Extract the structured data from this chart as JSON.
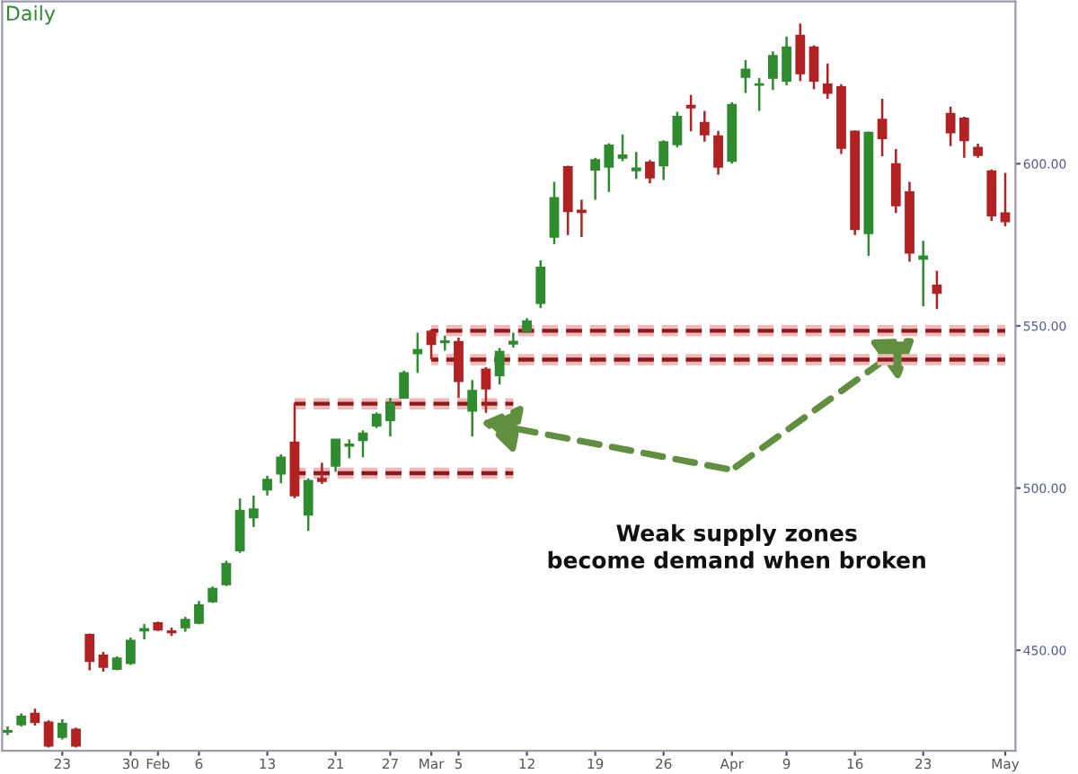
{
  "chart_data": {
    "type": "candlestick",
    "title": "Daily",
    "categories": [
      null,
      null,
      null,
      null,
      "23",
      null,
      null,
      null,
      null,
      "30",
      null,
      "Feb",
      null,
      null,
      "6",
      null,
      null,
      null,
      null,
      "13",
      null,
      null,
      null,
      null,
      "21",
      null,
      null,
      null,
      "27",
      null,
      null,
      "Mar",
      null,
      "5",
      null,
      null,
      null,
      null,
      "12",
      null,
      null,
      null,
      null,
      "19",
      null,
      null,
      null,
      null,
      "26",
      null,
      null,
      null,
      null,
      "Apr",
      null,
      null,
      null,
      "9",
      null,
      null,
      null,
      null,
      "16",
      null,
      null,
      null,
      null,
      "23",
      null,
      null,
      null,
      null,
      null,
      "May"
    ],
    "ohlc": [
      [
        424.8,
        426.5,
        423.8,
        425.2
      ],
      [
        427.1,
        430.5,
        426.5,
        429.6
      ],
      [
        430.5,
        432.0,
        426.8,
        427.8
      ],
      [
        427.8,
        428.4,
        420.0,
        420.5
      ],
      [
        423.2,
        428.7,
        422.5,
        427.4
      ],
      [
        425.6,
        426.2,
        420.0,
        420.5
      ],
      [
        454.8,
        455.2,
        443.8,
        446.6
      ],
      [
        448.4,
        449.5,
        443.4,
        444.8
      ],
      [
        444.2,
        448.1,
        443.8,
        447.5
      ],
      [
        446.0,
        453.9,
        445.5,
        453.0
      ],
      [
        456.0,
        458.1,
        453.4,
        456.6
      ],
      [
        458.4,
        458.8,
        455.9,
        456.3
      ],
      [
        455.9,
        457.0,
        454.4,
        455.5
      ],
      [
        457.0,
        460.3,
        455.7,
        459.4
      ],
      [
        458.4,
        465.2,
        458.0,
        463.9
      ],
      [
        465.0,
        469.6,
        464.6,
        469.0
      ],
      [
        470.3,
        477.6,
        469.8,
        476.7
      ],
      [
        480.7,
        496.8,
        480.0,
        493.1
      ],
      [
        490.9,
        497.7,
        488.0,
        493.5
      ],
      [
        499.5,
        503.8,
        497.7,
        502.6
      ],
      [
        504.4,
        510.4,
        501.5,
        509.5
      ],
      [
        514.1,
        526.3,
        496.9,
        497.7
      ],
      [
        491.7,
        503.0,
        486.8,
        502.3
      ],
      [
        502.9,
        507.8,
        501.3,
        502.1
      ],
      [
        506.8,
        515.0,
        505.0,
        515.0
      ],
      [
        513.0,
        515.0,
        509.2,
        513.5
      ],
      [
        514.7,
        517.8,
        509.5,
        516.9
      ],
      [
        519.2,
        523.3,
        518.5,
        522.7
      ],
      [
        520.9,
        527.8,
        515.9,
        526.0
      ],
      [
        527.8,
        536.2,
        527.5,
        535.5
      ],
      [
        541.5,
        547.9,
        535.5,
        542.6
      ],
      [
        548.3,
        548.9,
        539.6,
        544.3
      ],
      [
        544.9,
        547.0,
        542.4,
        545.3
      ],
      [
        545.1,
        546.4,
        527.8,
        532.9
      ],
      [
        523.8,
        533.3,
        515.9,
        530.0
      ],
      [
        536.6,
        537.3,
        523.2,
        530.6
      ],
      [
        534.7,
        543.2,
        531.9,
        542.1
      ],
      [
        544.5,
        547.9,
        543.3,
        545.2
      ],
      [
        548.4,
        552.4,
        547.9,
        551.5
      ],
      [
        557.0,
        570.2,
        555.5,
        568.0
      ],
      [
        577.4,
        594.4,
        575.2,
        589.5
      ],
      [
        599.0,
        599.4,
        578.0,
        585.3
      ],
      [
        585.6,
        588.9,
        577.4,
        585.0
      ],
      [
        598.1,
        601.8,
        588.9,
        601.2
      ],
      [
        599.0,
        606.3,
        591.3,
        605.7
      ],
      [
        601.8,
        609.0,
        600.8,
        602.6
      ],
      [
        597.9,
        603.6,
        595.3,
        598.6
      ],
      [
        600.4,
        601.1,
        593.9,
        595.7
      ],
      [
        599.4,
        607.2,
        595.0,
        606.7
      ],
      [
        605.9,
        616.0,
        605.0,
        614.5
      ],
      [
        617.9,
        621.2,
        610.0,
        617.3
      ],
      [
        612.7,
        616.3,
        606.8,
        609.0
      ],
      [
        608.5,
        610.1,
        596.6,
        599.0
      ],
      [
        600.8,
        618.9,
        600.0,
        618.2
      ],
      [
        626.7,
        631.9,
        621.8,
        629.1
      ],
      [
        624.3,
        626.4,
        616.3,
        624.6
      ],
      [
        626.4,
        634.6,
        622.7,
        633.3
      ],
      [
        625.5,
        639.2,
        624.2,
        635.9
      ],
      [
        639.5,
        643.2,
        625.5,
        627.8
      ],
      [
        635.9,
        636.5,
        623.0,
        625.5
      ],
      [
        624.5,
        630.9,
        620.0,
        621.8
      ],
      [
        623.7,
        624.5,
        603.0,
        604.8
      ],
      [
        610.0,
        610.3,
        578.0,
        579.8
      ],
      [
        578.5,
        609.9,
        571.6,
        609.6
      ],
      [
        613.6,
        620.0,
        602.3,
        607.8
      ],
      [
        599.9,
        604.5,
        584.8,
        587.1
      ],
      [
        591.3,
        594.4,
        569.8,
        572.5
      ],
      [
        570.6,
        576.2,
        556.1,
        571.5
      ],
      [
        562.5,
        567.0,
        555.2,
        560.1
      ],
      [
        615.4,
        617.6,
        605.4,
        609.6
      ],
      [
        614.0,
        614.5,
        601.8,
        607.2
      ],
      [
        605.0,
        606.2,
        601.8,
        602.6
      ],
      [
        597.7,
        598.2,
        582.4,
        584.0
      ],
      [
        584.8,
        597.2,
        580.7,
        582.2
      ]
    ],
    "colors": [
      "#2e8b2e",
      "#2e8b2e",
      "#b22222",
      "#b22222",
      "#2e8b2e",
      "#b22222",
      "#b22222",
      "#b22222",
      "#2e8b2e",
      "#2e8b2e",
      "#2e8b2e",
      "#b22222",
      "#b22222",
      "#2e8b2e",
      "#2e8b2e",
      "#2e8b2e",
      "#2e8b2e",
      "#2e8b2e",
      "#2e8b2e",
      "#2e8b2e",
      "#2e8b2e",
      "#b22222",
      "#2e8b2e",
      "#b22222",
      "#2e8b2e",
      "#2e8b2e",
      "#2e8b2e",
      "#2e8b2e",
      "#2e8b2e",
      "#2e8b2e",
      "#2e8b2e",
      "#b22222",
      "#2e8b2e",
      "#b22222",
      "#2e8b2e",
      "#b22222",
      "#2e8b2e",
      "#2e8b2e",
      "#2e8b2e",
      "#2e8b2e",
      "#2e8b2e",
      "#b22222",
      "#b22222",
      "#2e8b2e",
      "#2e8b2e",
      "#2e8b2e",
      "#2e8b2e",
      "#b22222",
      "#2e8b2e",
      "#2e8b2e",
      "#b22222",
      "#b22222",
      "#b22222",
      "#2e8b2e",
      "#2e8b2e",
      "#2e8b2e",
      "#2e8b2e",
      "#2e8b2e",
      "#b22222",
      "#b22222",
      "#b22222",
      "#b22222",
      "#b22222",
      "#2e8b2e",
      "#b22222",
      "#b22222",
      "#b22222",
      "#2e8b2e",
      "#b22222",
      "#b22222",
      "#b22222",
      "#b22222",
      "#b22222",
      "#b22222"
    ],
    "series": [
      {
        "type": "line",
        "color": "#8b1a1a",
        "line_style": "dashed",
        "values": [
          null,
          null,
          null,
          null,
          null,
          null,
          null,
          null,
          null,
          null,
          null,
          null,
          null,
          null,
          null,
          null,
          null,
          null,
          null,
          null,
          null,
          526.0,
          526.0,
          526.0,
          526.0,
          526.0,
          526.0,
          526.0,
          526.0,
          526.0,
          526.0,
          526.0,
          526.0,
          526.0,
          526.0,
          526.0,
          526.0,
          526.0,
          null,
          null,
          null,
          null,
          null,
          null,
          null,
          null,
          null,
          null,
          null,
          null,
          null,
          null,
          null,
          null,
          null,
          null,
          null,
          null,
          null,
          null,
          null,
          null,
          null,
          null,
          null,
          null,
          null,
          null,
          null,
          null,
          null,
          null,
          null,
          null
        ]
      },
      {
        "type": "line",
        "color": "#8b1a1a",
        "line_style": "dashed",
        "values": [
          null,
          null,
          null,
          null,
          null,
          null,
          null,
          null,
          null,
          null,
          null,
          null,
          null,
          null,
          null,
          null,
          null,
          null,
          null,
          null,
          null,
          504.6,
          504.6,
          504.6,
          504.6,
          504.6,
          504.6,
          504.6,
          504.6,
          504.6,
          504.6,
          504.6,
          504.6,
          504.6,
          504.6,
          504.6,
          504.6,
          504.6,
          null,
          null,
          null,
          null,
          null,
          null,
          null,
          null,
          null,
          null,
          null,
          null,
          null,
          null,
          null,
          null,
          null,
          null,
          null,
          null,
          null,
          null,
          null,
          null,
          null,
          null,
          null,
          null,
          null,
          null,
          null,
          null,
          null,
          null,
          null,
          null
        ]
      },
      {
        "type": "line",
        "color": "#8b1a1a",
        "line_style": "dashed",
        "values": [
          null,
          null,
          null,
          null,
          null,
          null,
          null,
          null,
          null,
          null,
          null,
          null,
          null,
          null,
          null,
          null,
          null,
          null,
          null,
          null,
          null,
          null,
          null,
          null,
          null,
          null,
          null,
          null,
          null,
          null,
          null,
          548.5,
          548.5,
          548.5,
          548.5,
          548.5,
          548.5,
          548.5,
          548.5,
          548.5,
          548.5,
          548.5,
          548.5,
          548.5,
          548.5,
          548.5,
          548.5,
          548.5,
          548.5,
          548.5,
          548.5,
          548.5,
          548.5,
          548.5,
          548.5,
          548.5,
          548.5,
          548.5,
          548.5,
          548.5,
          548.5,
          548.5,
          548.5,
          548.5,
          548.5,
          548.5,
          548.5,
          548.5,
          548.5,
          548.5,
          548.5,
          548.5,
          548.5,
          548.5
        ]
      },
      {
        "type": "line",
        "color": "#8b1a1a",
        "line_style": "dashed",
        "values": [
          null,
          null,
          null,
          null,
          null,
          null,
          null,
          null,
          null,
          null,
          null,
          null,
          null,
          null,
          null,
          null,
          null,
          null,
          null,
          null,
          null,
          null,
          null,
          null,
          null,
          null,
          null,
          null,
          null,
          null,
          null,
          539.6,
          539.6,
          539.6,
          539.6,
          539.6,
          539.6,
          539.6,
          539.6,
          539.6,
          539.6,
          539.6,
          539.6,
          539.6,
          539.6,
          539.6,
          539.6,
          539.6,
          539.6,
          539.6,
          539.6,
          539.6,
          539.6,
          539.6,
          539.6,
          539.6,
          539.6,
          539.6,
          539.6,
          539.6,
          539.6,
          539.6,
          539.6,
          539.6,
          539.6,
          539.6,
          539.6,
          539.6,
          539.6,
          539.6,
          539.6,
          539.6,
          539.6,
          539.6
        ]
      }
    ],
    "ylim": [
      419,
      650
    ],
    "yticks": [
      {
        "value": 450,
        "label": "450.00"
      },
      {
        "value": 500,
        "label": "500.00"
      },
      {
        "value": 550,
        "label": "550.00"
      },
      {
        "value": 600,
        "label": "600.00"
      }
    ],
    "annotations": [
      "Weak supply zones\nbecome demand when broken"
    ],
    "grid": false,
    "legend": false
  }
}
